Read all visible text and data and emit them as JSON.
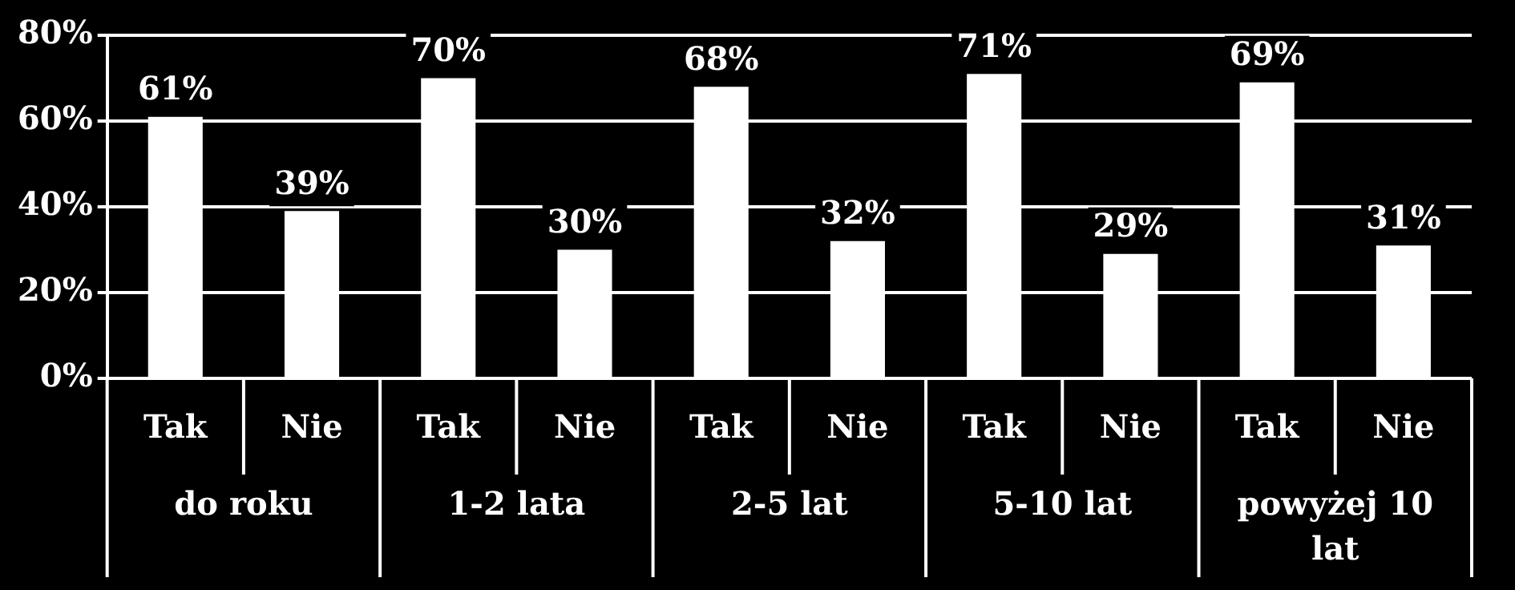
{
  "chart_data": {
    "type": "bar",
    "categories": [
      "Tak",
      "Nie",
      "Tak",
      "Nie",
      "Tak",
      "Nie",
      "Tak",
      "Nie",
      "Tak",
      "Nie"
    ],
    "values": [
      61,
      39,
      70,
      30,
      68,
      32,
      71,
      29,
      69,
      31
    ],
    "value_labels": [
      "61%",
      "39%",
      "70%",
      "30%",
      "68%",
      "32%",
      "71%",
      "29%",
      "69%",
      "31%"
    ],
    "color": "#ffffff",
    "ylim": [
      0,
      80
    ],
    "yticks": [
      {
        "value": 0,
        "label": "0%"
      },
      {
        "value": 20,
        "label": "20%"
      },
      {
        "value": 40,
        "label": "40%"
      },
      {
        "value": 60,
        "label": "60%"
      },
      {
        "value": 80,
        "label": "80%"
      }
    ],
    "grid": "y",
    "annotations": [
      "do roku",
      "1-2 lata",
      "2-5 lat",
      "5-10 lat",
      "powyżej 10 lat"
    ]
  }
}
